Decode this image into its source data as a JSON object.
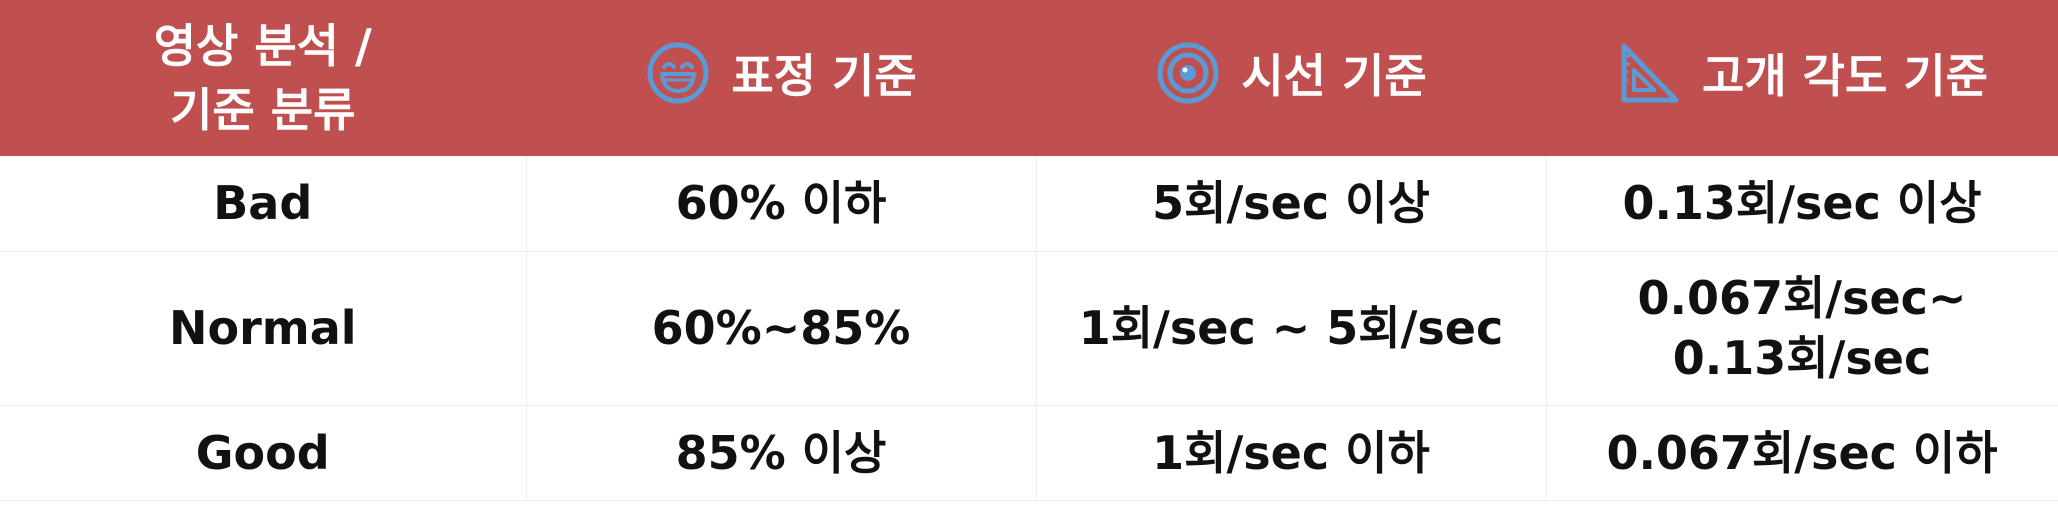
{
  "header": {
    "category_line1": "영상 분석 /",
    "category_line2": "기준 분류",
    "expression": {
      "label": "표정 기준",
      "icon": "grinning-face-icon"
    },
    "gaze": {
      "label": "시선 기준",
      "icon": "target-icon"
    },
    "head_angle": {
      "label": "고개 각도 기준",
      "icon": "set-square-icon"
    }
  },
  "rows": [
    {
      "grade": "Bad",
      "expression": "60% 이하",
      "gaze": "5회/sec 이상",
      "head_angle_line1": "0.13회/sec 이상",
      "head_angle_line2": ""
    },
    {
      "grade": "Normal",
      "expression": "60%~85%",
      "gaze": "1회/sec ~ 5회/sec",
      "head_angle_line1": "0.067회/sec~",
      "head_angle_line2": "0.13회/sec"
    },
    {
      "grade": "Good",
      "expression": "85% 이상",
      "gaze": "1회/sec 이하",
      "head_angle_line1": "0.067회/sec 이하",
      "head_angle_line2": ""
    }
  ],
  "colors": {
    "header_background": "#c0504f",
    "header_text": "#ffffff",
    "icon_blue": "#5b9bd5",
    "body_text": "#111111",
    "grid_line": "#eeeeee"
  }
}
